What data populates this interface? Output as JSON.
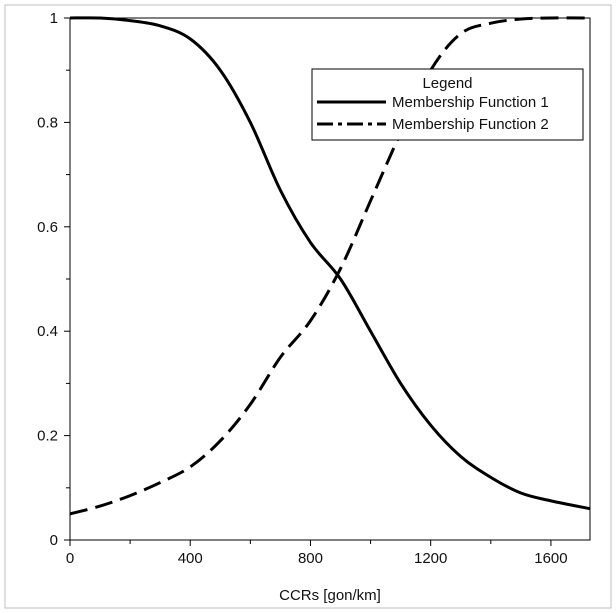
{
  "chart_data": {
    "type": "line",
    "title": "",
    "xlabel": "CCRs [gon/km]",
    "ylabel": "",
    "xlim": [
      0,
      1730
    ],
    "ylim": [
      0,
      1.0
    ],
    "xticks": [
      0,
      400,
      800,
      1200,
      1600
    ],
    "yticks": [
      0,
      0.2,
      0.4,
      0.6,
      0.8,
      1
    ],
    "xtick_labels": [
      "0",
      "400",
      "800",
      "1200",
      "1600"
    ],
    "ytick_labels": [
      "0",
      "0.2",
      "0.4",
      "0.6",
      "0.8",
      "1"
    ],
    "grid": false,
    "legend": {
      "title": "Legend",
      "placement": "top-right"
    },
    "series": [
      {
        "name": "Membership Function 1",
        "line_style": "solid",
        "color": "#000000",
        "x": [
          0,
          100,
          200,
          300,
          400,
          500,
          600,
          700,
          800,
          900,
          1000,
          1100,
          1200,
          1300,
          1400,
          1500,
          1600,
          1730
        ],
        "y": [
          1.0,
          1.0,
          0.995,
          0.985,
          0.96,
          0.9,
          0.8,
          0.67,
          0.57,
          0.5,
          0.4,
          0.3,
          0.22,
          0.16,
          0.12,
          0.09,
          0.075,
          0.06
        ]
      },
      {
        "name": "Membership Function 2",
        "line_style": "dashed",
        "color": "#000000",
        "x": [
          0,
          100,
          200,
          300,
          400,
          500,
          600,
          700,
          800,
          900,
          1000,
          1100,
          1200,
          1300,
          1400,
          1500,
          1600,
          1730
        ],
        "y": [
          0.05,
          0.065,
          0.085,
          0.11,
          0.14,
          0.19,
          0.26,
          0.35,
          0.42,
          0.52,
          0.65,
          0.78,
          0.9,
          0.97,
          0.99,
          0.998,
          1.0,
          1.0
        ]
      }
    ]
  }
}
